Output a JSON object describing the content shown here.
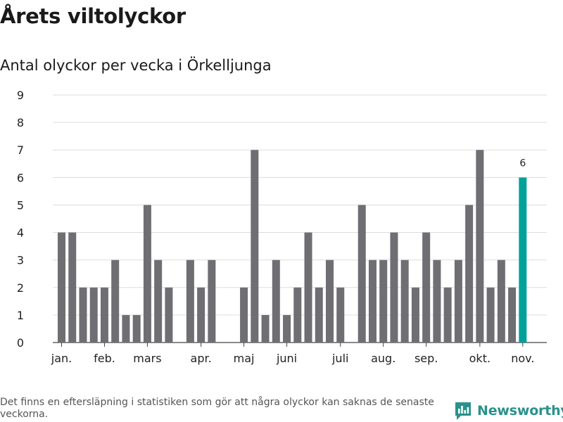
{
  "title": "Årets viltolyckor",
  "subtitle": "Antal olyckor per vecka i Örkelljunga",
  "footnote": "Det finns en eftersläpning i statistiken som gör att några olyckor kan saknas de senaste veckorna.",
  "brand": {
    "name": "Newsworthy",
    "icon": "newsworthy-logo-icon"
  },
  "colors": {
    "bar": "#6e6e73",
    "highlight": "#00a19a",
    "grid": "#dddddd",
    "axis": "#444444",
    "text": "#222222"
  },
  "chart_data": {
    "type": "bar",
    "title": "Antal olyckor per vecka i Örkelljunga",
    "xlabel": "",
    "ylabel": "",
    "ylim": [
      0,
      9
    ],
    "yticks": [
      "0",
      "1",
      "2",
      "3",
      "4",
      "5",
      "6",
      "7",
      "8",
      "9"
    ],
    "weeks": [
      1,
      2,
      3,
      4,
      5,
      6,
      7,
      8,
      9,
      10,
      11,
      12,
      13,
      14,
      15,
      16,
      17,
      18,
      19,
      20,
      21,
      22,
      23,
      24,
      25,
      26,
      27,
      28,
      29,
      30,
      31,
      32,
      33,
      34,
      35,
      36,
      37,
      38,
      39,
      40,
      41,
      42,
      43,
      44
    ],
    "values": [
      4,
      4,
      2,
      2,
      2,
      3,
      1,
      1,
      5,
      3,
      2,
      0,
      3,
      2,
      3,
      0,
      0,
      2,
      7,
      1,
      3,
      1,
      2,
      4,
      2,
      3,
      2,
      0,
      5,
      3,
      3,
      4,
      3,
      2,
      4,
      3,
      2,
      3,
      5,
      7,
      2,
      3,
      2,
      6
    ],
    "highlight_index": 43,
    "highlight_label": "6",
    "month_labels": [
      {
        "label": "jan.",
        "week": 1
      },
      {
        "label": "feb.",
        "week": 5
      },
      {
        "label": "mars",
        "week": 9
      },
      {
        "label": "apr.",
        "week": 14
      },
      {
        "label": "maj",
        "week": 18
      },
      {
        "label": "juni",
        "week": 22
      },
      {
        "label": "juli",
        "week": 27
      },
      {
        "label": "aug.",
        "week": 31
      },
      {
        "label": "sep.",
        "week": 35
      },
      {
        "label": "okt.",
        "week": 40
      },
      {
        "label": "nov.",
        "week": 44
      }
    ]
  }
}
